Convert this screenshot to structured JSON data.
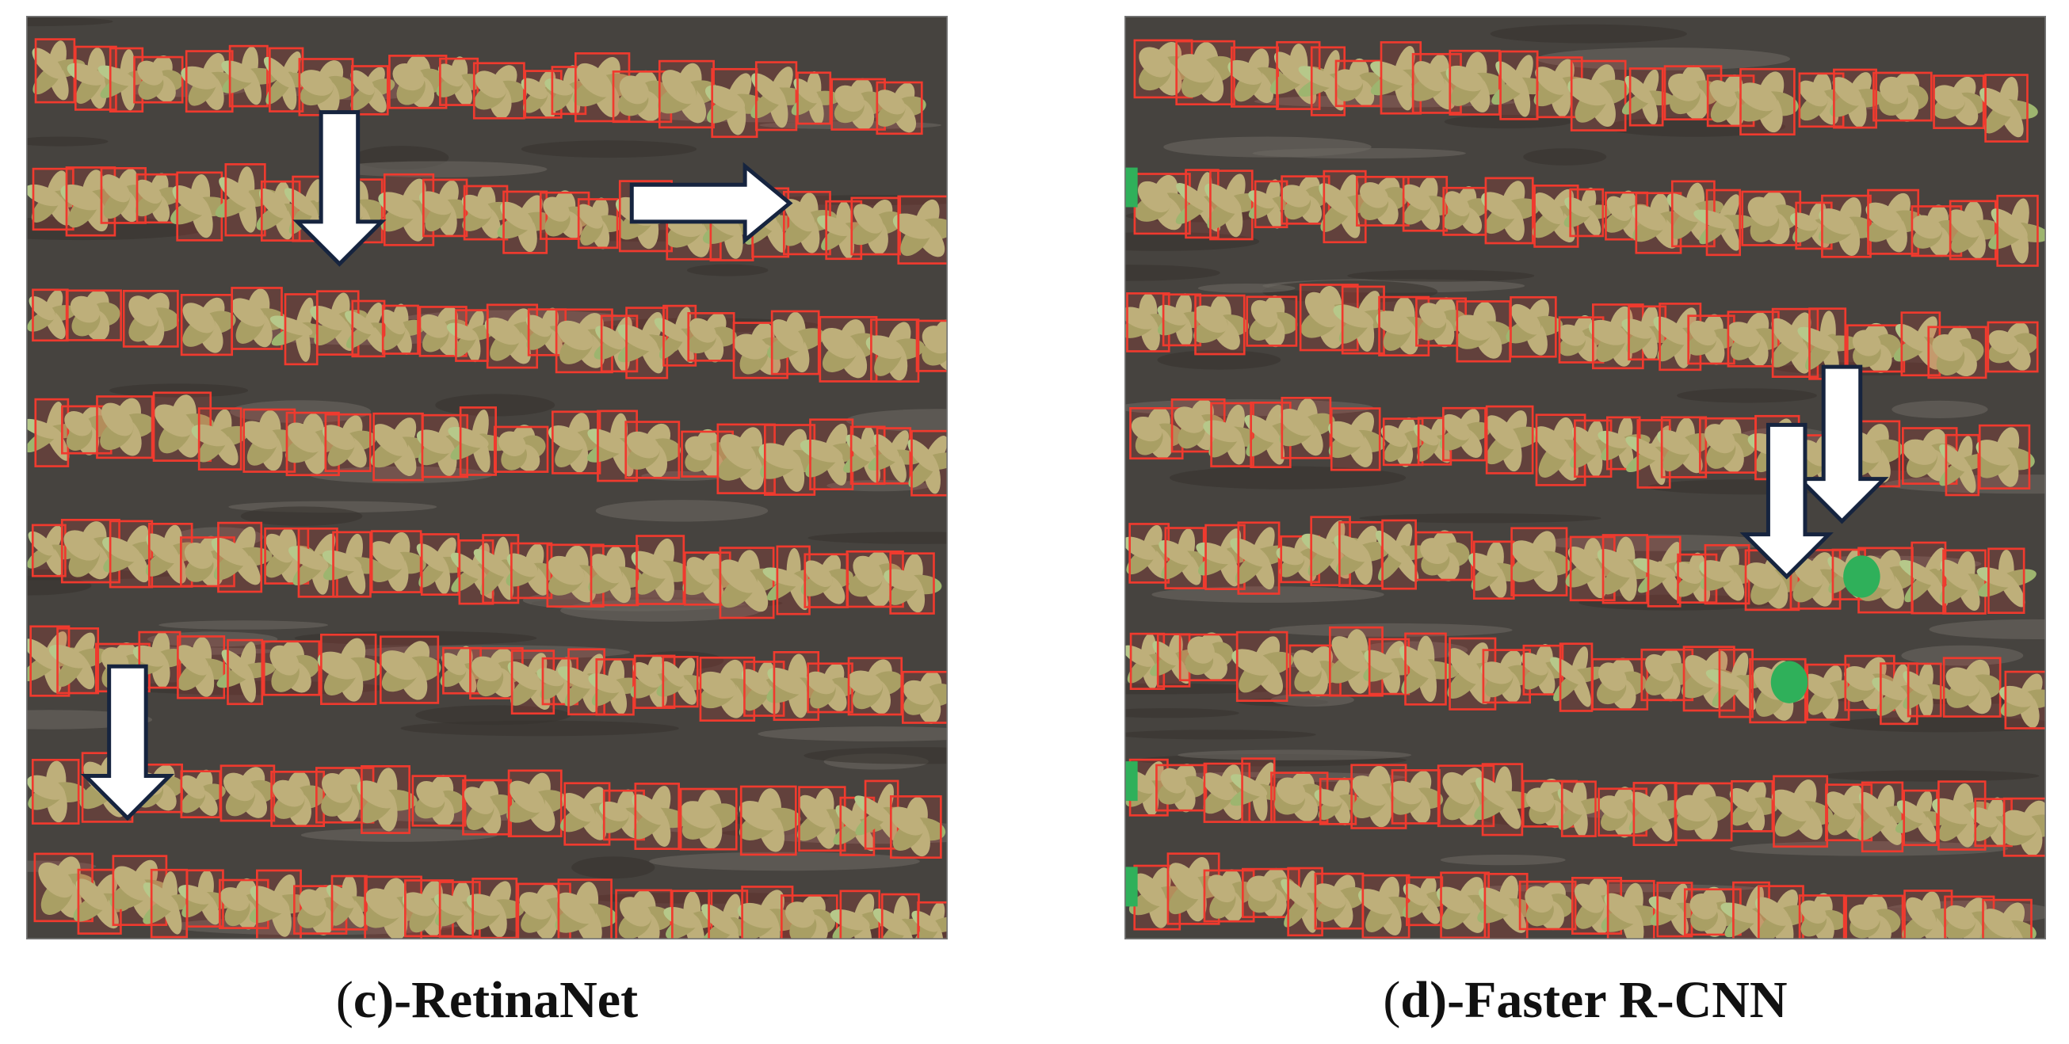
{
  "panels": [
    {
      "caption": {
        "open": "(",
        "letter": "c",
        "rest": ")-RetinaNet"
      }
    },
    {
      "caption": {
        "open": "(",
        "letter": "d",
        "rest": ")-Faster R-CNN"
      }
    }
  ]
}
